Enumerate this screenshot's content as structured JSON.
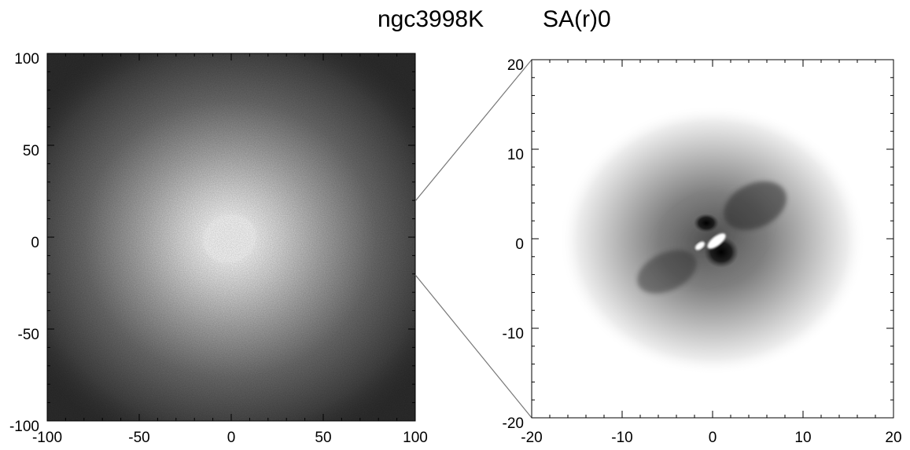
{
  "title": {
    "name": "ngc3998K",
    "classification": "SA(r)0"
  },
  "panels": [
    {
      "id": "left-image",
      "content": "K-band galaxy image with bright elliptical core",
      "xlim": [
        -100,
        100
      ],
      "ylim": [
        -100,
        100
      ],
      "xticks": [
        "-100",
        "-50",
        "0",
        "50",
        "100"
      ],
      "yticks": [
        "100",
        "50",
        "0",
        "-50",
        "-100"
      ]
    },
    {
      "id": "right-image",
      "content": "Zoomed unsharp-masked central region, inverted greyscale",
      "xlim": [
        -20,
        20
      ],
      "ylim": [
        -20,
        20
      ],
      "xticks": [
        "-20",
        "-10",
        "0",
        "10",
        "20"
      ],
      "yticks": [
        "20",
        "10",
        "0",
        "-10",
        "-20"
      ]
    }
  ],
  "zoom": {
    "from": "left-image",
    "to": "right-image",
    "region": {
      "x": [
        -20,
        20
      ],
      "y": [
        -20,
        20
      ]
    }
  },
  "colors": {
    "left_background": "#2e2e2e",
    "left_core": "#ffffff",
    "right_background": "#ffffff",
    "right_structure": "#000000",
    "connector": "#777777"
  }
}
